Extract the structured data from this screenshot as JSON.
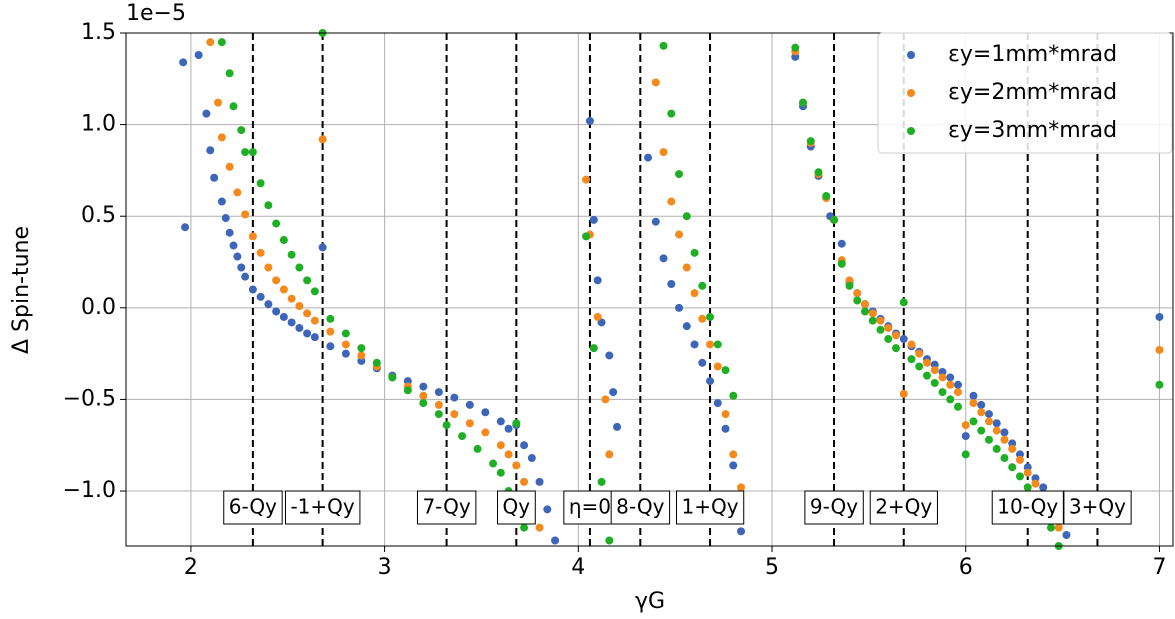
{
  "chart_data": {
    "type": "scatter",
    "offset_text": "1e−5",
    "xlabel": "γG",
    "ylabel": "Δ Spin-tune",
    "xlim": [
      1.665,
      7.07
    ],
    "ylim": [
      -1.3,
      1.5
    ],
    "xticks": [
      2,
      3,
      4,
      5,
      6,
      7
    ],
    "yticks": [
      {
        "value": -1.0,
        "label": "−1.0"
      },
      {
        "value": -0.5,
        "label": "−0.5"
      },
      {
        "value": 0.0,
        "label": "0.0"
      },
      {
        "value": 0.5,
        "label": "0.5"
      },
      {
        "value": 1.0,
        "label": "1.0"
      },
      {
        "value": 1.5,
        "label": "1.5"
      }
    ],
    "grid": true,
    "legend": "upper right",
    "annotations": [
      {
        "x": 2.32,
        "label": "6-Qy"
      },
      {
        "x": 2.68,
        "label": "-1+Qy"
      },
      {
        "x": 3.32,
        "label": "7-Qy"
      },
      {
        "x": 3.68,
        "label": "Qy"
      },
      {
        "x": 4.06,
        "label": "η=0"
      },
      {
        "x": 4.32,
        "label": "8-Qy"
      },
      {
        "x": 4.68,
        "label": "1+Qy"
      },
      {
        "x": 5.32,
        "label": "9-Qy"
      },
      {
        "x": 5.68,
        "label": "2+Qy"
      },
      {
        "x": 6.32,
        "label": "10-Qy"
      },
      {
        "x": 6.68,
        "label": "3+Qy"
      }
    ],
    "series": [
      {
        "name": "εy=1mm*mrad",
        "color": "#3d66bb",
        "x": [
          1.96,
          1.97,
          2.04,
          2.08,
          2.1,
          2.12,
          2.16,
          2.18,
          2.2,
          2.22,
          2.24,
          2.26,
          2.28,
          2.32,
          2.36,
          2.4,
          2.44,
          2.48,
          2.52,
          2.56,
          2.6,
          2.64,
          2.68,
          2.72,
          2.8,
          2.88,
          2.96,
          3.04,
          3.12,
          3.2,
          3.28,
          3.36,
          3.44,
          3.52,
          3.6,
          3.64,
          3.68,
          3.72,
          3.76,
          3.8,
          3.84,
          3.88,
          4.06,
          4.08,
          4.1,
          4.12,
          4.16,
          4.18,
          4.2,
          4.36,
          4.4,
          4.44,
          4.48,
          4.52,
          4.56,
          4.6,
          4.64,
          4.68,
          4.72,
          4.76,
          4.8,
          4.84,
          5.12,
          5.16,
          5.2,
          5.24,
          5.28,
          5.3,
          5.36,
          5.4,
          5.44,
          5.48,
          5.52,
          5.56,
          5.6,
          5.64,
          5.68,
          5.72,
          5.76,
          5.8,
          5.84,
          5.88,
          5.92,
          5.96,
          6.0,
          6.04,
          6.08,
          6.12,
          6.16,
          6.2,
          6.24,
          6.28,
          6.32,
          6.36,
          6.4,
          6.44,
          6.48,
          6.52,
          7.0
        ],
        "values": [
          1.34,
          0.44,
          1.38,
          1.06,
          0.86,
          0.71,
          0.58,
          0.49,
          0.41,
          0.34,
          0.28,
          0.22,
          0.17,
          0.1,
          0.06,
          0.02,
          -0.02,
          -0.05,
          -0.08,
          -0.11,
          -0.14,
          -0.16,
          0.33,
          -0.21,
          -0.25,
          -0.29,
          -0.33,
          -0.37,
          -0.4,
          -0.43,
          -0.46,
          -0.49,
          -0.53,
          -0.57,
          -0.62,
          -0.66,
          -0.64,
          -0.75,
          -0.82,
          -0.95,
          -1.1,
          -1.27,
          1.02,
          0.48,
          0.15,
          -0.08,
          -0.26,
          -0.46,
          -0.65,
          0.82,
          0.47,
          0.27,
          0.13,
          0.0,
          -0.1,
          -0.2,
          -0.3,
          -0.4,
          -0.52,
          -0.66,
          -0.86,
          -1.22,
          1.37,
          1.1,
          0.88,
          0.72,
          0.6,
          0.5,
          0.35,
          0.14,
          0.08,
          0.02,
          -0.02,
          -0.06,
          -0.1,
          -0.14,
          -0.17,
          -0.21,
          -0.24,
          -0.28,
          -0.31,
          -0.35,
          -0.38,
          -0.42,
          -0.7,
          -0.48,
          -0.53,
          -0.58,
          -0.63,
          -0.68,
          -0.74,
          -0.8,
          -0.87,
          -0.93,
          -0.98,
          -1.06,
          -1.16,
          -1.24,
          -0.05
        ]
      },
      {
        "name": "εy=2mm*mrad",
        "color": "#f5891c",
        "x": [
          2.1,
          2.14,
          2.16,
          2.2,
          2.24,
          2.28,
          2.32,
          2.36,
          2.4,
          2.44,
          2.48,
          2.52,
          2.56,
          2.6,
          2.64,
          2.68,
          2.72,
          2.8,
          2.88,
          2.96,
          3.04,
          3.12,
          3.2,
          3.28,
          3.36,
          3.44,
          3.52,
          3.6,
          3.64,
          3.68,
          3.72,
          3.76,
          3.8,
          4.04,
          4.06,
          4.1,
          4.14,
          4.16,
          4.4,
          4.44,
          4.48,
          4.52,
          4.56,
          4.6,
          4.64,
          4.68,
          4.72,
          4.76,
          4.8,
          4.84,
          5.12,
          5.16,
          5.2,
          5.24,
          5.28,
          5.32,
          5.36,
          5.4,
          5.44,
          5.48,
          5.52,
          5.56,
          5.6,
          5.64,
          5.68,
          5.72,
          5.76,
          5.8,
          5.84,
          5.88,
          5.92,
          5.96,
          6.0,
          6.04,
          6.08,
          6.12,
          6.16,
          6.2,
          6.24,
          6.28,
          6.32,
          6.36,
          6.4,
          6.44,
          6.48,
          7.0
        ],
        "values": [
          1.45,
          1.12,
          0.93,
          0.77,
          0.63,
          0.51,
          0.39,
          0.3,
          0.22,
          0.15,
          0.1,
          0.05,
          0.01,
          -0.03,
          -0.07,
          0.92,
          -0.13,
          -0.2,
          -0.26,
          -0.32,
          -0.38,
          -0.43,
          -0.48,
          -0.53,
          -0.58,
          -0.63,
          -0.68,
          -0.75,
          -0.8,
          -0.86,
          -0.95,
          -1.05,
          -1.2,
          0.7,
          0.4,
          -0.05,
          -0.5,
          -0.8,
          1.23,
          0.85,
          0.58,
          0.4,
          0.22,
          0.08,
          -0.06,
          -0.2,
          -0.32,
          -0.58,
          -0.8,
          -0.98,
          1.4,
          1.12,
          0.9,
          0.73,
          0.6,
          0.48,
          0.26,
          0.15,
          0.08,
          0.02,
          -0.03,
          -0.07,
          -0.11,
          -0.15,
          -0.47,
          -0.2,
          -0.25,
          -0.3,
          -0.34,
          -0.38,
          -0.42,
          -0.46,
          -0.64,
          -0.52,
          -0.57,
          -0.62,
          -0.67,
          -0.72,
          -0.77,
          -0.83,
          -0.9,
          -0.96,
          -1.02,
          -1.1,
          -1.2,
          -0.23
        ]
      },
      {
        "name": "εy=3mm*mrad",
        "color": "#1faf24",
        "x": [
          2.16,
          2.2,
          2.22,
          2.26,
          2.28,
          2.32,
          2.36,
          2.4,
          2.44,
          2.48,
          2.52,
          2.56,
          2.6,
          2.64,
          2.68,
          2.72,
          2.8,
          2.88,
          2.96,
          3.04,
          3.12,
          3.2,
          3.28,
          3.32,
          3.4,
          3.48,
          3.56,
          3.6,
          3.64,
          3.68,
          3.72,
          4.04,
          4.08,
          4.12,
          4.16,
          4.44,
          4.48,
          4.52,
          4.56,
          4.6,
          4.64,
          4.68,
          4.72,
          4.76,
          4.8,
          5.12,
          5.16,
          5.2,
          5.24,
          5.28,
          5.32,
          5.36,
          5.4,
          5.44,
          5.48,
          5.52,
          5.56,
          5.6,
          5.64,
          5.68,
          5.72,
          5.76,
          5.8,
          5.84,
          5.88,
          5.92,
          5.96,
          6.0,
          6.04,
          6.08,
          6.12,
          6.16,
          6.2,
          6.24,
          6.28,
          6.32,
          6.36,
          6.4,
          6.44,
          6.48,
          7.0
        ],
        "values": [
          1.45,
          1.28,
          1.1,
          0.97,
          0.85,
          0.85,
          0.68,
          0.56,
          0.46,
          0.37,
          0.29,
          0.22,
          0.15,
          0.09,
          1.5,
          -0.06,
          -0.14,
          -0.22,
          -0.3,
          -0.38,
          -0.45,
          -0.52,
          -0.58,
          -0.64,
          -0.7,
          -0.77,
          -0.85,
          -0.9,
          -1.0,
          -0.63,
          -1.2,
          0.39,
          -0.22,
          -0.95,
          -1.27,
          1.43,
          1.06,
          0.73,
          0.5,
          0.3,
          0.12,
          -0.05,
          -0.2,
          -0.34,
          -0.48,
          1.42,
          1.12,
          0.91,
          0.74,
          0.61,
          0.48,
          0.24,
          0.12,
          0.04,
          -0.02,
          -0.07,
          -0.12,
          -0.17,
          -0.22,
          0.03,
          -0.28,
          -0.32,
          -0.37,
          -0.41,
          -0.46,
          -0.5,
          -0.54,
          -0.8,
          -0.62,
          -0.67,
          -0.72,
          -0.77,
          -0.82,
          -0.87,
          -0.92,
          -0.98,
          -1.05,
          -1.12,
          -1.2,
          -1.3,
          -0.42
        ]
      }
    ]
  }
}
